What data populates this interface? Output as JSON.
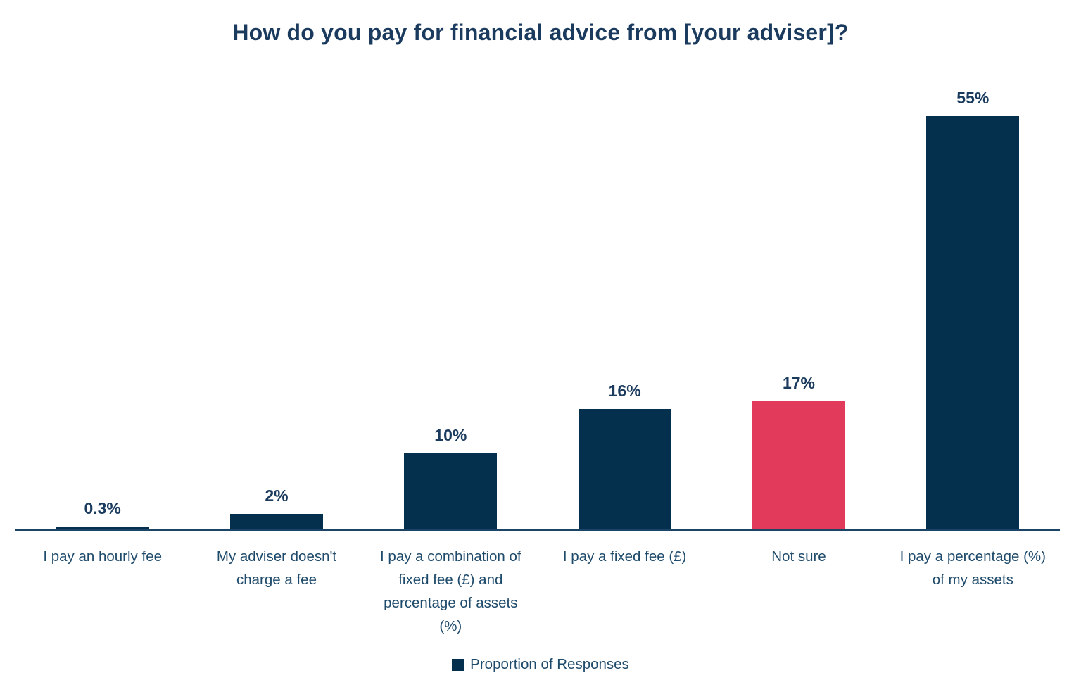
{
  "title": "How do you pay for financial advice from [your adviser]?",
  "colors": {
    "navy": "#04304E",
    "red": "#E23A5B",
    "title_text": "#1A3A5E",
    "category_text": "#1E4A6B",
    "axis": "#1B4467"
  },
  "legend": {
    "label": "Proportion of Responses",
    "swatch_color": "#04304E"
  },
  "chart_data": {
    "type": "bar",
    "title": "How do you pay for financial advice from [your adviser]?",
    "series_name": "Proportion of Responses",
    "categories": [
      "I pay an hourly fee",
      "My adviser doesn't charge a fee",
      "I pay a combination of fixed fee (£) and percentage of assets (%)",
      "I pay a fixed fee (£)",
      "Not sure",
      "I pay a percentage (%) of my assets"
    ],
    "category_lines": [
      [
        "I pay an hourly fee"
      ],
      [
        "My adviser doesn't",
        "charge a fee"
      ],
      [
        "I pay a combination of",
        "fixed fee (£) and",
        "percentage of assets",
        "(%)"
      ],
      [
        "I pay a fixed fee (£)"
      ],
      [
        "Not sure"
      ],
      [
        "I pay a percentage (%)",
        "of my assets"
      ]
    ],
    "values": [
      0.3,
      2,
      10,
      16,
      17,
      55
    ],
    "value_labels": [
      "0.3%",
      "2%",
      "10%",
      "16%",
      "17%",
      "55%"
    ],
    "bar_colors": [
      "#04304E",
      "#04304E",
      "#04304E",
      "#04304E",
      "#E23A5B",
      "#04304E"
    ],
    "highlight_category": "Not sure",
    "ylim": [
      0,
      55
    ],
    "grid": false,
    "y_axis_shown": false,
    "legend_position": "bottom"
  }
}
